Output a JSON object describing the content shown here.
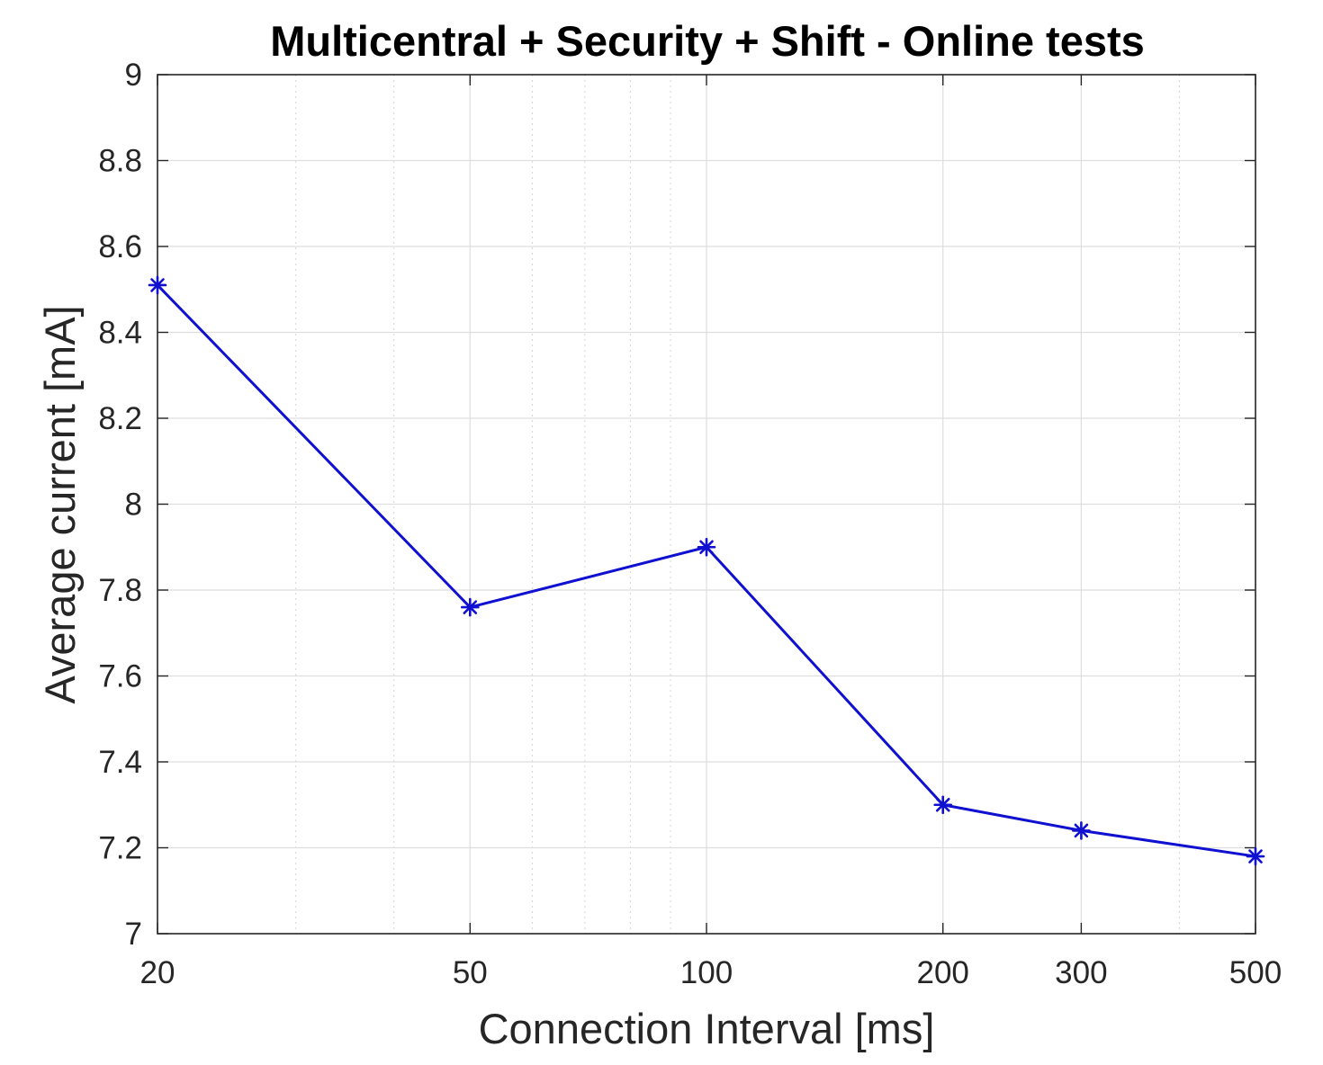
{
  "chart_data": {
    "type": "line",
    "title": "Multicentral + Security + Shift - Online tests",
    "xlabel": "Connection Interval [ms]",
    "ylabel": "Average current [mA]",
    "x_scale": "log",
    "xlim": [
      20,
      500
    ],
    "ylim": [
      7,
      9
    ],
    "xticks": [
      20,
      50,
      100,
      200,
      300,
      500
    ],
    "xtick_labels": [
      "20",
      "50",
      "100",
      "200",
      "300",
      "500"
    ],
    "x_minor_grid": [
      30,
      40,
      60,
      70,
      80,
      90,
      400
    ],
    "yticks": [
      7,
      7.2,
      7.4,
      7.6,
      7.8,
      8,
      8.2,
      8.4,
      8.6,
      8.8,
      9
    ],
    "ytick_labels": [
      "7",
      "7.2",
      "7.4",
      "7.6",
      "7.8",
      "8",
      "8.2",
      "8.4",
      "8.6",
      "8.8",
      "9"
    ],
    "grid": true,
    "series": [
      {
        "color": "#1010d0",
        "marker": "asterisk",
        "x": [
          20,
          50,
          100,
          200,
          300,
          500
        ],
        "y": [
          8.51,
          7.76,
          7.9,
          7.3,
          7.24,
          7.18
        ]
      }
    ]
  }
}
